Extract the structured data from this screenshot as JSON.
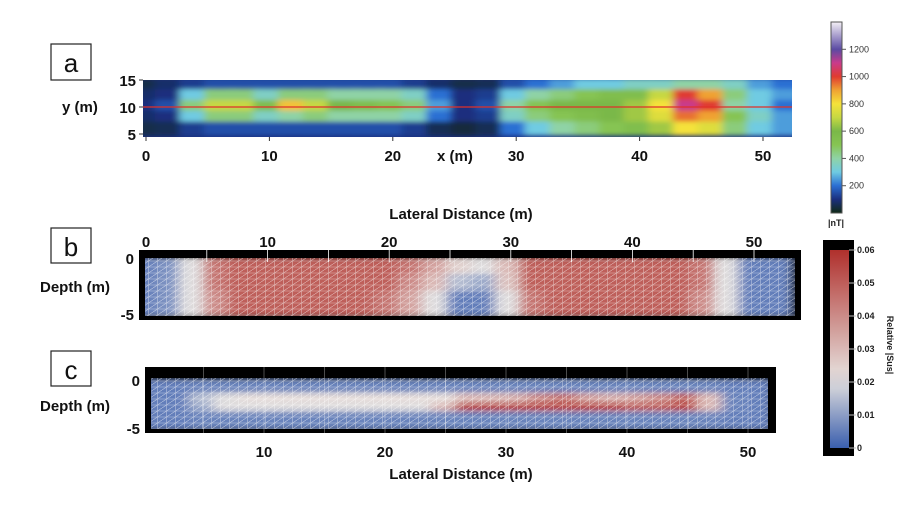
{
  "panels": {
    "a": {
      "label": "a"
    },
    "b": {
      "label": "b"
    },
    "c": {
      "label": "c"
    }
  },
  "colorbar_nT": {
    "title": "|nT|",
    "ticks": [
      "200",
      "400",
      "600",
      "800",
      "1000",
      "1200"
    ],
    "colors": {
      "0": "#0f2a14",
      "100": "#1b2f7e",
      "200": "#2b6fd3",
      "300": "#6fcbe2",
      "400": "#8fd3a6",
      "500": "#86c452",
      "600": "#7ab848",
      "700": "#c6d842",
      "800": "#f5e23a",
      "900": "#f0a233",
      "1000": "#e03b30",
      "1100": "#c93b8b",
      "1200": "#5b4ba3",
      "1400": "#f4f0f6"
    }
  },
  "colorbar_sus": {
    "title": "Relative |Sus|",
    "ticks": [
      "0",
      "0.01",
      "0.02",
      "0.03",
      "0.04",
      "0.05",
      "0.06"
    ],
    "colors": {
      "low": "#3a5fae",
      "mid": "#e6e2df",
      "high": "#b0302c"
    }
  },
  "chart_data": [
    {
      "type": "heatmap",
      "panel": "a",
      "xlabel": "x (m)",
      "ylabel": "y (m)",
      "xticks": [
        "0",
        "10",
        "20",
        "30",
        "40",
        "50"
      ],
      "yticks": [
        "15",
        "10",
        "5"
      ],
      "xlim": [
        0,
        52.5
      ],
      "ylim": [
        5,
        15
      ],
      "colorbar_label": "|nT|",
      "profile_line_y": 10,
      "profile_line_color": "#e0302a",
      "x": [
        0,
        2,
        4,
        6,
        8,
        10,
        12,
        14,
        16,
        18,
        20,
        22,
        24,
        26,
        28,
        30,
        32,
        34,
        36,
        38,
        40,
        42,
        44,
        46,
        48,
        50,
        52
      ],
      "y": [
        14,
        12,
        10,
        8,
        6
      ],
      "values": [
        [
          50,
          80,
          120,
          150,
          150,
          150,
          150,
          150,
          150,
          150,
          150,
          120,
          80,
          50,
          60,
          150,
          200,
          250,
          300,
          300,
          350,
          350,
          400,
          400,
          350,
          250,
          200
        ],
        [
          80,
          100,
          300,
          450,
          450,
          350,
          450,
          450,
          400,
          400,
          400,
          350,
          200,
          100,
          120,
          300,
          400,
          450,
          500,
          550,
          550,
          700,
          1000,
          900,
          450,
          300,
          250
        ],
        [
          100,
          150,
          450,
          700,
          700,
          550,
          850,
          700,
          600,
          550,
          500,
          450,
          250,
          100,
          150,
          400,
          500,
          600,
          600,
          600,
          650,
          800,
          1100,
          1000,
          400,
          300,
          200
        ],
        [
          80,
          100,
          300,
          450,
          450,
          350,
          400,
          450,
          400,
          400,
          400,
          350,
          200,
          100,
          120,
          350,
          450,
          500,
          550,
          600,
          650,
          750,
          950,
          900,
          500,
          350,
          250
        ],
        [
          50,
          60,
          120,
          150,
          150,
          150,
          150,
          150,
          150,
          150,
          150,
          120,
          60,
          40,
          60,
          200,
          300,
          400,
          450,
          500,
          550,
          650,
          800,
          750,
          450,
          300,
          250
        ]
      ]
    },
    {
      "type": "heatmap",
      "panel": "b",
      "title": "Lateral Distance (m)",
      "ylabel": "Depth (m)",
      "xticks": [
        "0",
        "10",
        "20",
        "30",
        "40",
        "50"
      ],
      "yticks": [
        "0",
        "-5"
      ],
      "xlim": [
        0,
        53
      ],
      "ylim": [
        -5,
        0
      ],
      "colorbar_label": "Relative |Sus|",
      "x": [
        0,
        2,
        4,
        6,
        8,
        10,
        12,
        14,
        16,
        18,
        20,
        22,
        24,
        26,
        28,
        30,
        32,
        34,
        36,
        38,
        40,
        42,
        44,
        46,
        48,
        50,
        52
      ],
      "depth": [
        -1,
        -2.5,
        -4
      ],
      "values": [
        [
          0.005,
          0.008,
          0.02,
          0.045,
          0.05,
          0.05,
          0.05,
          0.05,
          0.05,
          0.05,
          0.05,
          0.045,
          0.035,
          0.025,
          0.02,
          0.03,
          0.05,
          0.05,
          0.05,
          0.05,
          0.05,
          0.05,
          0.05,
          0.045,
          0.02,
          0.005,
          0.005
        ],
        [
          0.005,
          0.008,
          0.02,
          0.045,
          0.05,
          0.05,
          0.05,
          0.05,
          0.05,
          0.05,
          0.05,
          0.04,
          0.03,
          0.015,
          0.012,
          0.028,
          0.05,
          0.05,
          0.05,
          0.05,
          0.05,
          0.05,
          0.05,
          0.045,
          0.02,
          0.005,
          0.005
        ],
        [
          0.005,
          0.008,
          0.02,
          0.04,
          0.05,
          0.05,
          0.05,
          0.05,
          0.05,
          0.05,
          0.045,
          0.035,
          0.02,
          0.005,
          0.005,
          0.02,
          0.045,
          0.05,
          0.05,
          0.05,
          0.05,
          0.05,
          0.05,
          0.04,
          0.02,
          0.005,
          0.005
        ]
      ]
    },
    {
      "type": "heatmap",
      "panel": "c",
      "xlabel": "Lateral Distance (m)",
      "ylabel": "Depth (m)",
      "xticks": [
        "10",
        "20",
        "30",
        "40",
        "50"
      ],
      "yticks": [
        "0",
        "-5"
      ],
      "xlim": [
        0,
        52
      ],
      "ylim": [
        -5,
        0
      ],
      "colorbar_label": "Relative |Sus|",
      "x": [
        1,
        3,
        5,
        7,
        9,
        11,
        13,
        15,
        17,
        19,
        21,
        23,
        25,
        27,
        29,
        31,
        33,
        35,
        37,
        39,
        41,
        43,
        45,
        47,
        49,
        51
      ],
      "depth": [
        -0.75,
        -2,
        -3,
        -4.25
      ],
      "values": [
        [
          0.005,
          0.005,
          0.006,
          0.006,
          0.006,
          0.006,
          0.006,
          0.006,
          0.006,
          0.006,
          0.006,
          0.006,
          0.006,
          0.006,
          0.006,
          0.006,
          0.006,
          0.006,
          0.006,
          0.006,
          0.006,
          0.006,
          0.006,
          0.006,
          0.005,
          0.005
        ],
        [
          0.005,
          0.005,
          0.015,
          0.02,
          0.022,
          0.022,
          0.022,
          0.022,
          0.022,
          0.022,
          0.022,
          0.022,
          0.022,
          0.03,
          0.03,
          0.032,
          0.04,
          0.045,
          0.035,
          0.032,
          0.035,
          0.04,
          0.048,
          0.03,
          0.006,
          0.005
        ],
        [
          0.005,
          0.005,
          0.012,
          0.02,
          0.02,
          0.02,
          0.02,
          0.02,
          0.02,
          0.02,
          0.02,
          0.02,
          0.03,
          0.055,
          0.055,
          0.055,
          0.055,
          0.055,
          0.055,
          0.055,
          0.05,
          0.05,
          0.055,
          0.03,
          0.006,
          0.005
        ],
        [
          0.005,
          0.005,
          0.006,
          0.006,
          0.006,
          0.006,
          0.006,
          0.006,
          0.006,
          0.006,
          0.006,
          0.006,
          0.006,
          0.006,
          0.006,
          0.006,
          0.006,
          0.006,
          0.006,
          0.006,
          0.006,
          0.006,
          0.006,
          0.006,
          0.005,
          0.005
        ]
      ]
    }
  ]
}
